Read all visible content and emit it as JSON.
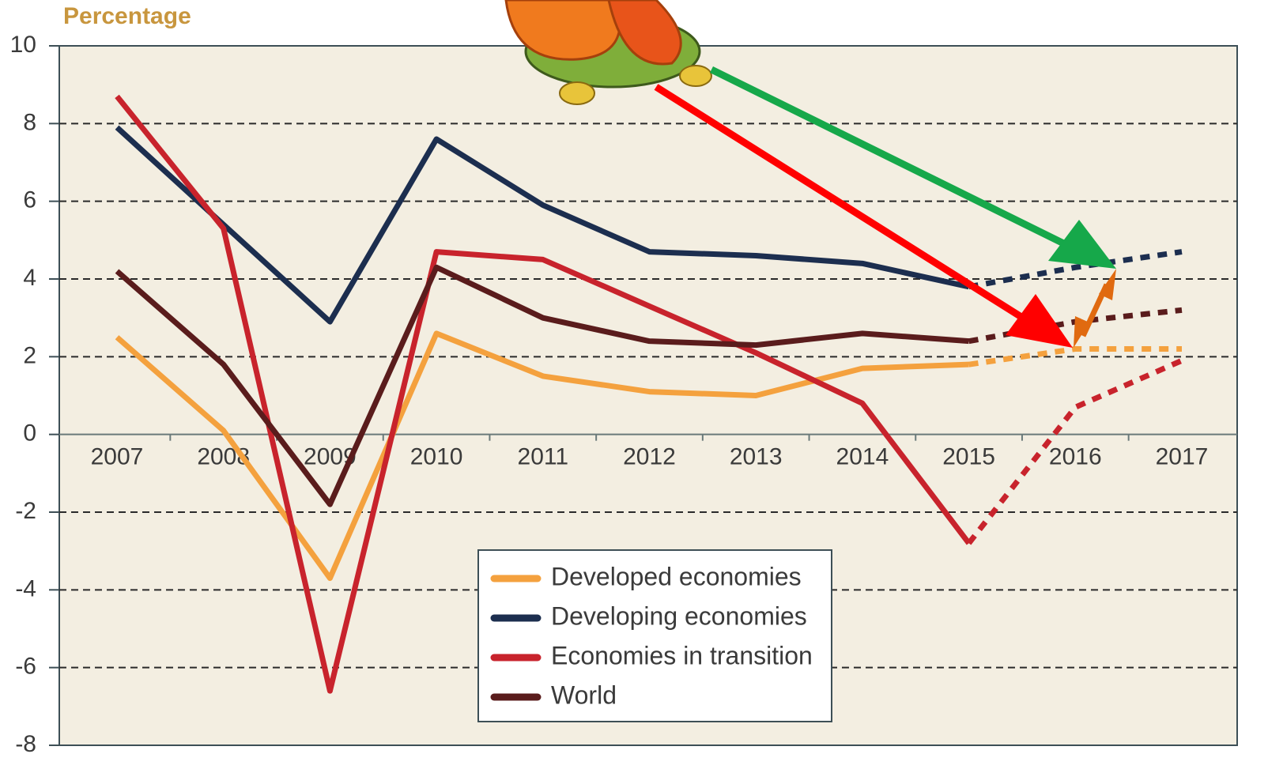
{
  "chart_data": {
    "type": "line",
    "y_label": "Percentage",
    "categories": [
      "2007",
      "2008",
      "2009",
      "2010",
      "2011",
      "2012",
      "2013",
      "2014",
      "2015",
      "2016",
      "2017"
    ],
    "forecast_from": "2015",
    "series": [
      {
        "name": "Developed economies",
        "color": "#f4a13e",
        "values": [
          2.5,
          0.1,
          -3.7,
          2.6,
          1.5,
          1.1,
          1.0,
          1.7,
          1.8,
          2.2,
          2.2
        ]
      },
      {
        "name": "Developing economies",
        "color": "#1c2e4f",
        "values": [
          7.9,
          5.4,
          2.9,
          7.6,
          5.9,
          4.7,
          4.6,
          4.4,
          3.8,
          4.3,
          4.7
        ]
      },
      {
        "name": "Economies in transition",
        "color": "#c8232c",
        "values": [
          8.7,
          5.3,
          -6.6,
          4.7,
          4.5,
          3.3,
          2.1,
          0.8,
          -2.8,
          0.7,
          1.9
        ]
      },
      {
        "name": "World",
        "color": "#5a1c1c",
        "values": [
          4.2,
          1.8,
          -1.8,
          4.3,
          3.0,
          2.4,
          2.3,
          2.6,
          2.4,
          2.9,
          3.2
        ]
      }
    ],
    "ylim": [
      -8,
      10
    ],
    "yticks": [
      -8,
      -6,
      -4,
      -2,
      0,
      2,
      4,
      6,
      8,
      10
    ],
    "grid": true
  }
}
